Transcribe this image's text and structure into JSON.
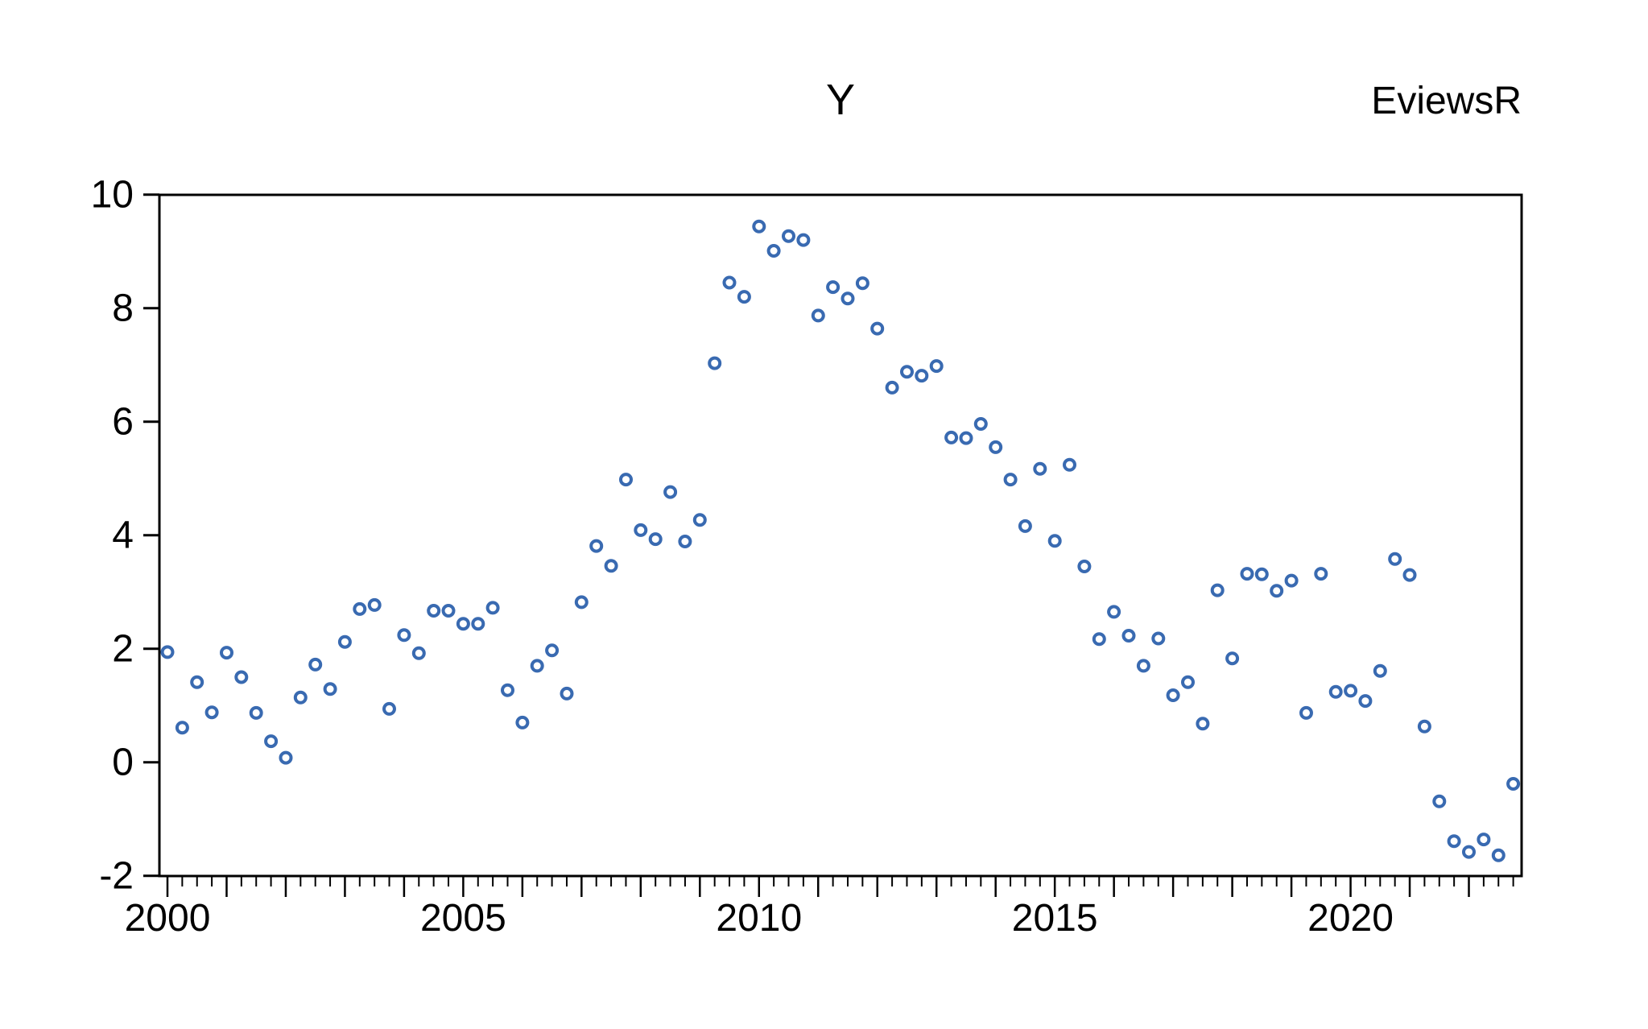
{
  "header": {
    "title": "Y",
    "watermark": "EviewsR"
  },
  "chart_data": {
    "type": "scatter",
    "title": "Y",
    "series_name": "Y",
    "frequency": "quarterly",
    "x_start": 2000.0,
    "x_step": 0.25,
    "first_period": "2000Q1",
    "last_period": "2022Q4",
    "values": [
      1.94,
      0.61,
      1.41,
      0.88,
      1.93,
      1.5,
      0.87,
      0.37,
      0.08,
      1.14,
      1.72,
      1.29,
      2.12,
      2.7,
      2.77,
      0.94,
      2.24,
      1.92,
      2.67,
      2.67,
      2.44,
      2.44,
      2.72,
      1.27,
      0.7,
      1.7,
      1.97,
      1.21,
      2.82,
      3.81,
      3.46,
      4.98,
      4.09,
      3.93,
      4.76,
      3.89,
      4.27,
      7.03,
      8.45,
      8.2,
      9.44,
      9.01,
      9.27,
      9.2,
      7.87,
      8.37,
      8.17,
      8.44,
      7.64,
      6.6,
      6.88,
      6.81,
      6.98,
      5.72,
      5.71,
      5.96,
      5.55,
      4.98,
      4.16,
      5.17,
      3.9,
      5.24,
      3.45,
      2.17,
      2.65,
      2.23,
      1.7,
      2.18,
      1.18,
      1.41,
      0.68,
      3.03,
      1.83,
      3.32,
      3.31,
      3.02,
      3.2,
      0.87,
      3.32,
      1.24,
      1.26,
      1.08,
      1.61,
      3.58,
      3.3,
      0.63,
      -0.69,
      -1.39,
      -1.58,
      -1.36,
      -1.64,
      -0.38
    ],
    "xlabel": "",
    "ylabel": "",
    "x_tick_labels": [
      "2000",
      "2005",
      "2010",
      "2015",
      "2020"
    ],
    "x_tick_years": [
      2000,
      2005,
      2010,
      2015,
      2020
    ],
    "y_ticks": [
      10,
      8,
      6,
      4,
      2,
      0,
      -2
    ],
    "ylim": [
      -2,
      10
    ],
    "grid": "off",
    "legend": "none",
    "marker": {
      "shape": "open-circle",
      "color": "#396ab1",
      "fill": "#ffffff"
    },
    "axis_color": "#000000",
    "background_color": "#ffffff"
  }
}
